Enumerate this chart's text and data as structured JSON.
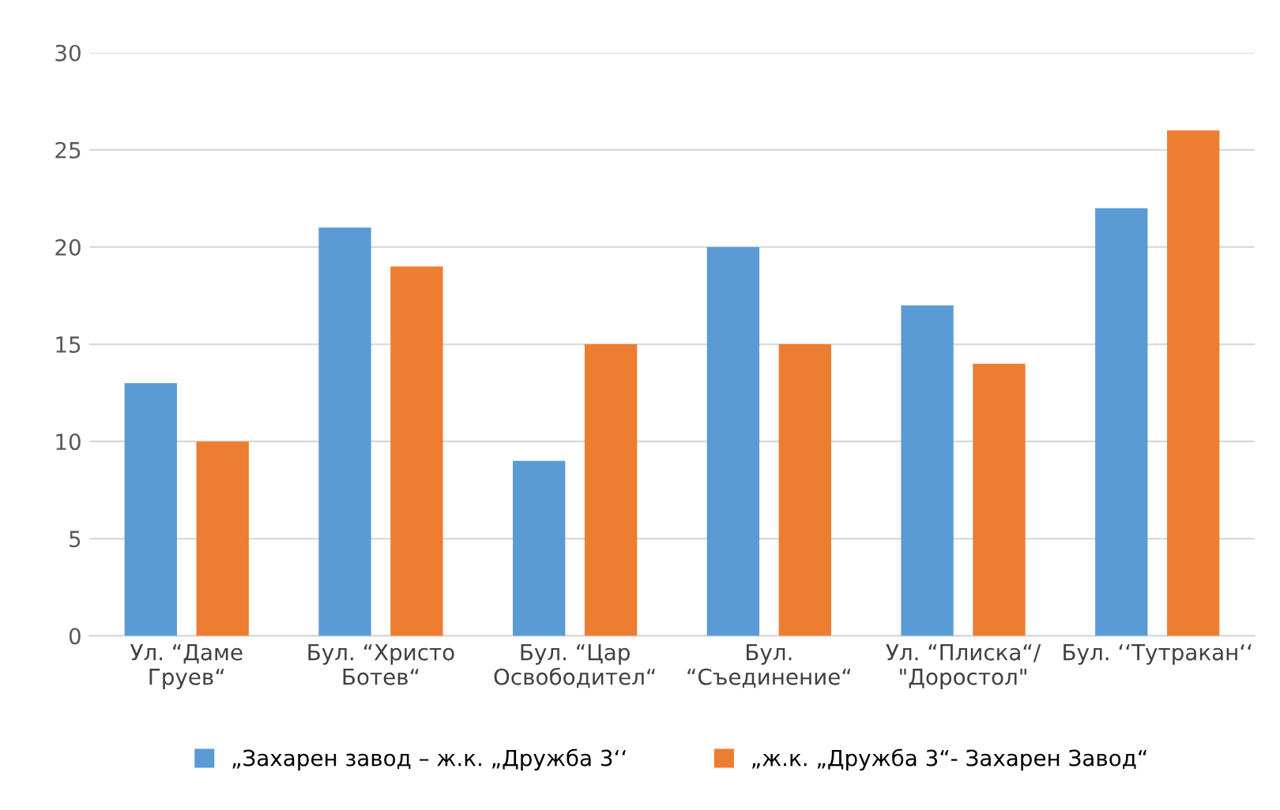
{
  "chart_data": {
    "type": "bar",
    "categories": [
      "Ул. “Даме\nГруев“",
      "Бул. “Христо\nБотев“",
      "Бул. “Цар\nОсвободител“",
      "Бул.\n“Съединение“",
      "Ул. “Плиска“/\n\"Доростол\"",
      "Бул. ‘‘Тутракан‘‘"
    ],
    "series": [
      {
        "name": "„Захарен завод – ж.к. „Дружба 3‘‘",
        "color": "#5b9bd5",
        "values": [
          13,
          21,
          9,
          20,
          17,
          22
        ]
      },
      {
        "name": "„ж.к. „Дружба 3“- Захарен Завод“",
        "color": "#ed7d31",
        "values": [
          10,
          19,
          15,
          15,
          14,
          26
        ]
      }
    ],
    "ylim": [
      0,
      30
    ],
    "yticks": [
      0,
      5,
      10,
      15,
      20,
      25,
      30
    ],
    "grid": "y",
    "legend": "bottom"
  }
}
